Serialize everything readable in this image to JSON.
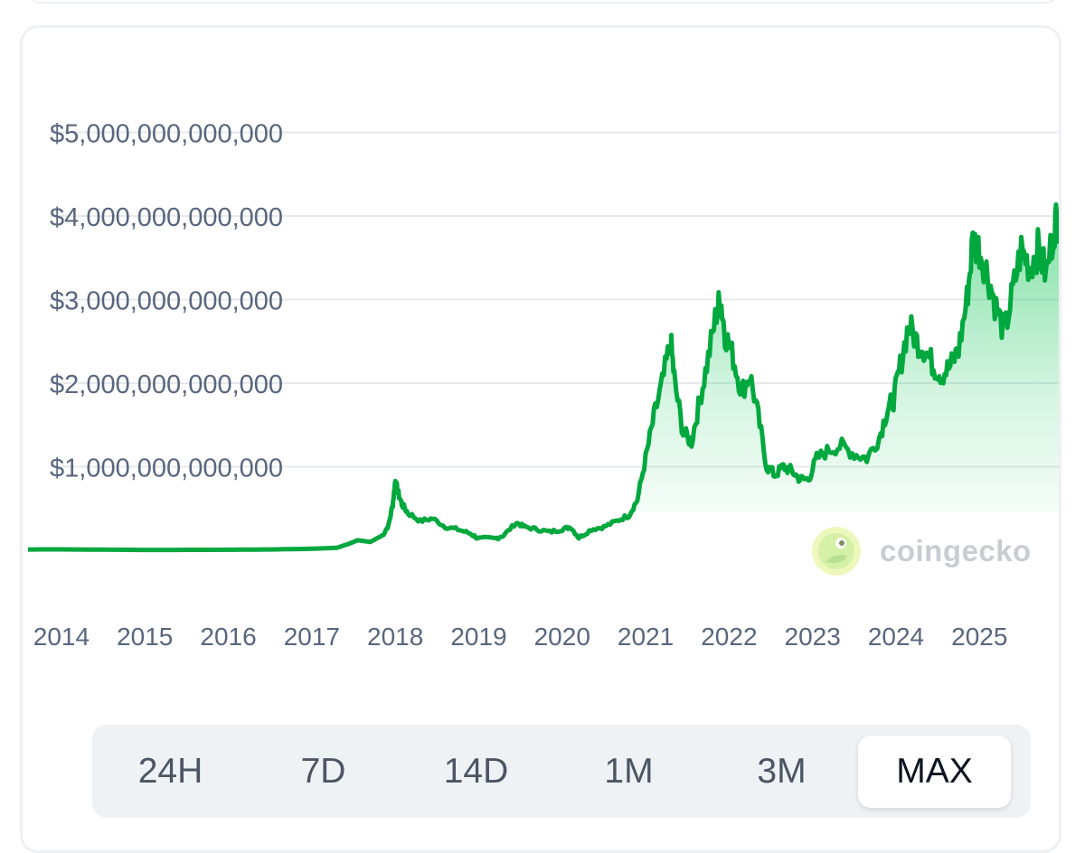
{
  "chart_data": {
    "type": "area",
    "y_tick_labels": [
      "$1,000,000,000,000",
      "$2,000,000,000,000",
      "$3,000,000,000,000",
      "$4,000,000,000,000",
      "$5,000,000,000,000"
    ],
    "y_ticks": [
      1000000000000,
      2000000000000,
      3000000000000,
      4000000000000,
      5000000000000
    ],
    "x_tick_labels": [
      "2014",
      "2015",
      "2016",
      "2017",
      "2018",
      "2019",
      "2020",
      "2021",
      "2022",
      "2023",
      "2024",
      "2025"
    ],
    "ylim": [
      0,
      5500000000000
    ],
    "xlim": [
      2013.6,
      2025.95
    ],
    "grid": true,
    "line_color": "#00a83e",
    "fill_color": "#16c75a",
    "series": [
      {
        "points": [
          [
            2013.6,
            0.01
          ],
          [
            2014.0,
            0.011
          ],
          [
            2015.0,
            0.004
          ],
          [
            2016.0,
            0.006
          ],
          [
            2016.5,
            0.01
          ],
          [
            2017.0,
            0.018
          ],
          [
            2017.3,
            0.03
          ],
          [
            2017.45,
            0.08
          ],
          [
            2017.55,
            0.12
          ],
          [
            2017.7,
            0.1
          ],
          [
            2017.85,
            0.18
          ],
          [
            2017.92,
            0.3
          ],
          [
            2017.97,
            0.55
          ],
          [
            2018.0,
            0.83
          ],
          [
            2018.03,
            0.7
          ],
          [
            2018.08,
            0.55
          ],
          [
            2018.15,
            0.45
          ],
          [
            2018.3,
            0.35
          ],
          [
            2018.45,
            0.38
          ],
          [
            2018.6,
            0.28
          ],
          [
            2018.75,
            0.25
          ],
          [
            2018.9,
            0.2
          ],
          [
            2019.0,
            0.14
          ],
          [
            2019.2,
            0.14
          ],
          [
            2019.3,
            0.18
          ],
          [
            2019.45,
            0.33
          ],
          [
            2019.55,
            0.28
          ],
          [
            2019.7,
            0.25
          ],
          [
            2019.85,
            0.22
          ],
          [
            2020.0,
            0.25
          ],
          [
            2020.1,
            0.28
          ],
          [
            2020.2,
            0.15
          ],
          [
            2020.35,
            0.25
          ],
          [
            2020.5,
            0.28
          ],
          [
            2020.65,
            0.35
          ],
          [
            2020.8,
            0.42
          ],
          [
            2020.9,
            0.6
          ],
          [
            2021.0,
            1.1
          ],
          [
            2021.1,
            1.6
          ],
          [
            2021.2,
            2.0
          ],
          [
            2021.3,
            2.5
          ],
          [
            2021.35,
            2.0
          ],
          [
            2021.45,
            1.4
          ],
          [
            2021.55,
            1.3
          ],
          [
            2021.65,
            1.8
          ],
          [
            2021.75,
            2.3
          ],
          [
            2021.85,
            2.85
          ],
          [
            2021.9,
            3.0
          ],
          [
            2021.95,
            2.6
          ],
          [
            2022.05,
            2.3
          ],
          [
            2022.15,
            1.9
          ],
          [
            2022.25,
            2.1
          ],
          [
            2022.35,
            1.6
          ],
          [
            2022.45,
            1.0
          ],
          [
            2022.55,
            0.9
          ],
          [
            2022.65,
            1.0
          ],
          [
            2022.75,
            0.95
          ],
          [
            2022.85,
            0.85
          ],
          [
            2022.95,
            0.85
          ],
          [
            2023.05,
            1.1
          ],
          [
            2023.2,
            1.2
          ],
          [
            2023.35,
            1.25
          ],
          [
            2023.5,
            1.15
          ],
          [
            2023.65,
            1.1
          ],
          [
            2023.8,
            1.35
          ],
          [
            2023.9,
            1.7
          ],
          [
            2023.97,
            1.8
          ],
          [
            2024.05,
            2.2
          ],
          [
            2024.15,
            2.7
          ],
          [
            2024.25,
            2.5
          ],
          [
            2024.35,
            2.4
          ],
          [
            2024.45,
            2.2
          ],
          [
            2024.55,
            2.1
          ],
          [
            2024.65,
            2.2
          ],
          [
            2024.75,
            2.4
          ],
          [
            2024.85,
            3.0
          ],
          [
            2024.92,
            3.7
          ],
          [
            2025.0,
            3.6
          ],
          [
            2025.1,
            3.3
          ],
          [
            2025.2,
            2.9
          ],
          [
            2025.3,
            2.6
          ],
          [
            2025.4,
            3.1
          ],
          [
            2025.5,
            3.6
          ],
          [
            2025.6,
            3.4
          ],
          [
            2025.7,
            3.6
          ],
          [
            2025.8,
            3.3
          ],
          [
            2025.9,
            3.9
          ],
          [
            2025.95,
            4.0
          ]
        ]
      }
    ]
  },
  "watermark": {
    "text": "coingecko"
  },
  "range_selector": {
    "options": [
      "24H",
      "7D",
      "14D",
      "1M",
      "3M",
      "MAX"
    ],
    "selected": "MAX"
  }
}
